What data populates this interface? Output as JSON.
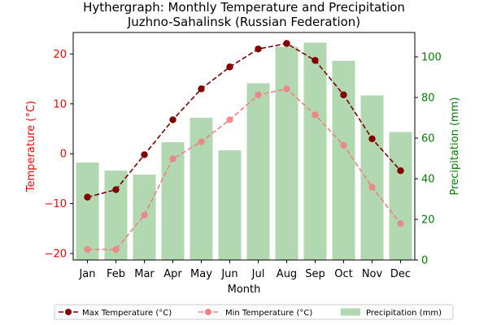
{
  "chart_data": {
    "type": "bar",
    "title": "Hythergraph: Monthly Temperature and Precipitation",
    "subtitle": "Juzhno-Sahalinsk (Russian Federation)",
    "xlabel": "Month",
    "ylabel_left": "Temperature (°C)",
    "ylabel_right": "Precipitation (mm)",
    "categories": [
      "Jan",
      "Feb",
      "Mar",
      "Apr",
      "May",
      "Jun",
      "Jul",
      "Aug",
      "Sep",
      "Oct",
      "Nov",
      "Dec"
    ],
    "ylim_left": [
      -21.3,
      24.3
    ],
    "ylim_right": [
      0,
      112
    ],
    "yticks_left": [
      -20,
      -10,
      0,
      10,
      20
    ],
    "yticks_right": [
      0,
      20,
      40,
      60,
      80,
      100
    ],
    "series": [
      {
        "name": "Precipitation (mm)",
        "type": "bar",
        "axis": "right",
        "values": [
          48,
          44,
          42,
          58,
          70,
          54,
          87,
          105,
          107,
          98,
          81,
          63
        ]
      },
      {
        "name": "Max Temperature (°C)",
        "type": "line",
        "axis": "left",
        "values": [
          -8.7,
          -7.2,
          -0.2,
          6.8,
          13.0,
          17.4,
          21.0,
          22.1,
          18.7,
          11.8,
          3.0,
          -3.4
        ]
      },
      {
        "name": "Min Temperature (°C)",
        "type": "line",
        "axis": "left",
        "values": [
          -19.2,
          -19.2,
          -12.3,
          -1.0,
          2.4,
          6.8,
          11.8,
          13.0,
          7.8,
          1.7,
          -6.7,
          -14.0
        ]
      }
    ],
    "legend_position": "bottom-center",
    "grid": false,
    "colors": {
      "precip": "#b2d8b2",
      "tmax": "#800000",
      "tmin": "#f08080",
      "left_axis": "#ff0000",
      "right_axis": "#008000"
    }
  }
}
